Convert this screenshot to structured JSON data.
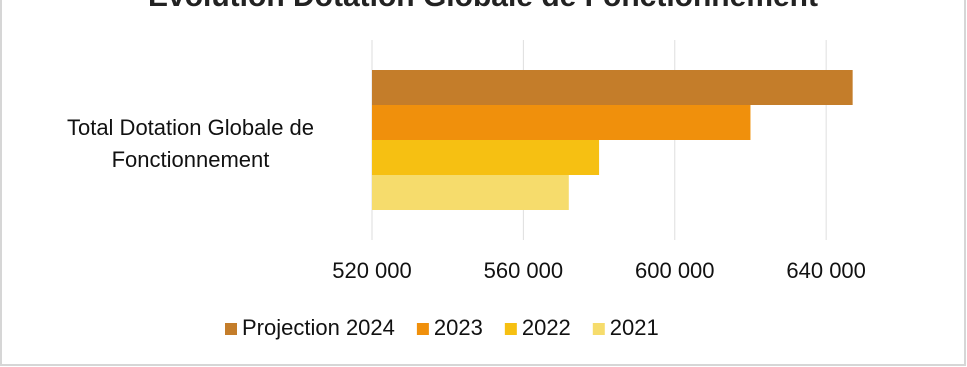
{
  "chart_data": {
    "type": "hbar",
    "title": "Evolution Dotation Globale de Fonctionnement",
    "categories": [
      "Total Dotation Globale de Fonctionnement"
    ],
    "series": [
      {
        "name": "Projection 2024",
        "color": "#c47d2a",
        "values": [
          647000
        ]
      },
      {
        "name": "2023",
        "color": "#f0900c",
        "values": [
          620000
        ]
      },
      {
        "name": "2022",
        "color": "#f6c012",
        "values": [
          580000
        ]
      },
      {
        "name": "2021",
        "color": "#f6dc6c",
        "values": [
          572000
        ]
      }
    ],
    "xlim": [
      520000,
      650000
    ],
    "xticks": [
      {
        "value": 520000,
        "label": "520 000"
      },
      {
        "value": 560000,
        "label": "560 000"
      },
      {
        "value": 600000,
        "label": "600 000"
      },
      {
        "value": 640000,
        "label": "640 000"
      }
    ],
    "grid": true
  }
}
